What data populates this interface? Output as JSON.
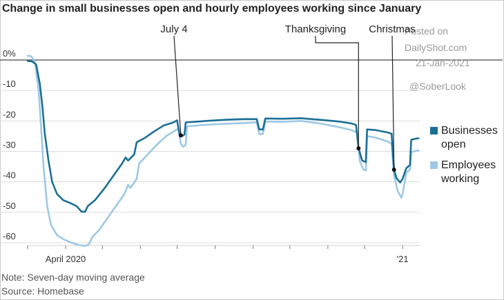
{
  "chart_data": {
    "type": "line",
    "title": "Change in small businesses open and hourly employees working since January",
    "ylim": [
      -62,
      3
    ],
    "yticks": [
      {
        "v": 0,
        "label": "0%"
      },
      {
        "v": -10,
        "label": "-10"
      },
      {
        "v": -20,
        "label": "-20"
      },
      {
        "v": -30,
        "label": "-30"
      },
      {
        "v": -40,
        "label": "-40"
      },
      {
        "v": -50,
        "label": "-50"
      },
      {
        "v": -60,
        "label": "-60"
      }
    ],
    "xlim": [
      "2020-03-01",
      "2021-01-15"
    ],
    "xticks": [
      {
        "date": "2020-04-01",
        "label": "April 2020"
      },
      {
        "date": "2021-01-01",
        "label": "'21"
      }
    ],
    "grid": true,
    "legend": "right",
    "annotations": [
      {
        "label": "July 4",
        "date": "2020-07-04",
        "series": 0
      },
      {
        "label": "Thanksgiving",
        "date": "2020-11-26",
        "series": 0
      },
      {
        "label": "Christmas",
        "date": "2020-12-25",
        "series": 0
      }
    ],
    "series": [
      {
        "name": "Businesses open",
        "color": "#1b6f95",
        "points": [
          [
            "2020-03-01",
            -0.3
          ],
          [
            "2020-03-05",
            -0.5
          ],
          [
            "2020-03-08",
            -1.5
          ],
          [
            "2020-03-11",
            -8
          ],
          [
            "2020-03-13",
            -15
          ],
          [
            "2020-03-15",
            -24
          ],
          [
            "2020-03-18",
            -33
          ],
          [
            "2020-03-21",
            -40
          ],
          [
            "2020-03-25",
            -44
          ],
          [
            "2020-03-30",
            -46
          ],
          [
            "2020-04-05",
            -47
          ],
          [
            "2020-04-10",
            -48
          ],
          [
            "2020-04-14",
            -49.8
          ],
          [
            "2020-04-17",
            -49.8
          ],
          [
            "2020-04-19",
            -48
          ],
          [
            "2020-04-25",
            -46
          ],
          [
            "2020-05-03",
            -42
          ],
          [
            "2020-05-10",
            -38
          ],
          [
            "2020-05-17",
            -34
          ],
          [
            "2020-05-20",
            -32
          ],
          [
            "2020-05-22",
            -33
          ],
          [
            "2020-05-27",
            -31
          ],
          [
            "2020-05-29",
            -27
          ],
          [
            "2020-06-05",
            -25.5
          ],
          [
            "2020-06-12",
            -23.5
          ],
          [
            "2020-06-20",
            -21.5
          ],
          [
            "2020-06-28",
            -20.5
          ],
          [
            "2020-07-01",
            -19.8
          ],
          [
            "2020-07-03",
            -24.5
          ],
          [
            "2020-07-05",
            -25
          ],
          [
            "2020-07-07",
            -24.5
          ],
          [
            "2020-07-08",
            -20.5
          ],
          [
            "2020-07-15",
            -20.3
          ],
          [
            "2020-07-25",
            -20
          ],
          [
            "2020-08-10",
            -19.6
          ],
          [
            "2020-08-25",
            -19.4
          ],
          [
            "2020-09-04",
            -19.4
          ],
          [
            "2020-09-06",
            -22.8
          ],
          [
            "2020-09-09",
            -22.8
          ],
          [
            "2020-09-11",
            -19.2
          ],
          [
            "2020-09-25",
            -19.3
          ],
          [
            "2020-10-10",
            -19.1
          ],
          [
            "2020-10-25",
            -19.6
          ],
          [
            "2020-11-10",
            -20.2
          ],
          [
            "2020-11-20",
            -20.8
          ],
          [
            "2020-11-24",
            -21.3
          ],
          [
            "2020-11-26",
            -29
          ],
          [
            "2020-11-29",
            -33
          ],
          [
            "2020-12-02",
            -33.5
          ],
          [
            "2020-12-03",
            -22.8
          ],
          [
            "2020-12-10",
            -23
          ],
          [
            "2020-12-20",
            -23.8
          ],
          [
            "2020-12-23",
            -24.2
          ],
          [
            "2020-12-25",
            -36
          ],
          [
            "2020-12-27",
            -38.8
          ],
          [
            "2020-12-30",
            -40.2
          ],
          [
            "2021-01-01",
            -39
          ],
          [
            "2021-01-04",
            -35.5
          ],
          [
            "2021-01-07",
            -34.5
          ],
          [
            "2021-01-08",
            -26.2
          ],
          [
            "2021-01-12",
            -25.8
          ],
          [
            "2021-01-14",
            -25.7
          ]
        ]
      },
      {
        "name": "Employees working",
        "color": "#9dc8e6",
        "points": [
          [
            "2020-03-01",
            1.4
          ],
          [
            "2020-03-04",
            1.2
          ],
          [
            "2020-03-07",
            -0.8
          ],
          [
            "2020-03-10",
            -10
          ],
          [
            "2020-03-12",
            -22
          ],
          [
            "2020-03-14",
            -35
          ],
          [
            "2020-03-17",
            -48
          ],
          [
            "2020-03-20",
            -54
          ],
          [
            "2020-03-25",
            -57.5
          ],
          [
            "2020-03-31",
            -59
          ],
          [
            "2020-04-06",
            -60
          ],
          [
            "2020-04-12",
            -60.8
          ],
          [
            "2020-04-17",
            -61
          ],
          [
            "2020-04-20",
            -60.5
          ],
          [
            "2020-04-23",
            -58
          ],
          [
            "2020-04-28",
            -56
          ],
          [
            "2020-05-05",
            -52
          ],
          [
            "2020-05-12",
            -48
          ],
          [
            "2020-05-19",
            -44
          ],
          [
            "2020-05-22",
            -41
          ],
          [
            "2020-05-24",
            -42
          ],
          [
            "2020-05-29",
            -39
          ],
          [
            "2020-05-31",
            -34
          ],
          [
            "2020-06-07",
            -31
          ],
          [
            "2020-06-14",
            -28
          ],
          [
            "2020-06-22",
            -25
          ],
          [
            "2020-06-30",
            -23
          ],
          [
            "2020-07-02",
            -22.5
          ],
          [
            "2020-07-04",
            -27.5
          ],
          [
            "2020-07-06",
            -28.5
          ],
          [
            "2020-07-08",
            -27.8
          ],
          [
            "2020-07-09",
            -21.8
          ],
          [
            "2020-07-20",
            -21.4
          ],
          [
            "2020-08-05",
            -21
          ],
          [
            "2020-08-25",
            -20.7
          ],
          [
            "2020-09-04",
            -20.5
          ],
          [
            "2020-09-06",
            -24.3
          ],
          [
            "2020-09-09",
            -24.3
          ],
          [
            "2020-09-11",
            -20.2
          ],
          [
            "2020-09-25",
            -20.3
          ],
          [
            "2020-10-10",
            -20
          ],
          [
            "2020-10-25",
            -20.8
          ],
          [
            "2020-11-10",
            -22
          ],
          [
            "2020-11-20",
            -23
          ],
          [
            "2020-11-25",
            -23.8
          ],
          [
            "2020-11-27",
            -33
          ],
          [
            "2020-11-30",
            -36
          ],
          [
            "2020-12-02",
            -36.3
          ],
          [
            "2020-12-03",
            -25
          ],
          [
            "2020-12-10",
            -25.5
          ],
          [
            "2020-12-20",
            -26.8
          ],
          [
            "2020-12-23",
            -27.5
          ],
          [
            "2020-12-25",
            -38
          ],
          [
            "2020-12-28",
            -43
          ],
          [
            "2020-12-31",
            -45.2
          ],
          [
            "2021-01-01",
            -44
          ],
          [
            "2021-01-04",
            -37
          ],
          [
            "2021-01-07",
            -36
          ],
          [
            "2021-01-08",
            -30.3
          ],
          [
            "2021-01-12",
            -29.8
          ],
          [
            "2021-01-14",
            -29.7
          ]
        ]
      }
    ],
    "legend_items": [
      {
        "line1": "Businesses",
        "line2": "open",
        "color": "#1b6f95"
      },
      {
        "line1": "Employees",
        "line2": "working",
        "color": "#9dc8e6"
      }
    ]
  },
  "watermark": {
    "line1": "Posted on",
    "line2": "DailyShot.com",
    "line3": "21-Jan-2021",
    "line4": "@SoberLook"
  },
  "footer": {
    "note": "Note: Seven-day moving average",
    "source": "Source: Homebase"
  }
}
